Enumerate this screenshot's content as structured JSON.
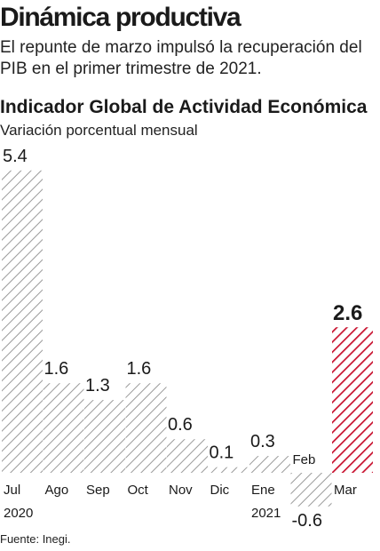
{
  "headline": "Dinámica productiva",
  "subtitle": "El repunte de marzo impulsó la recuperación del PIB en el primer trimestre de 2021.",
  "source": "Fuente: Inegi.",
  "colors": {
    "hatch_default": "#9a9a9a",
    "hatch_highlight": "#c8102e",
    "text": "#1a1a1a"
  },
  "chart_data": {
    "type": "bar",
    "title": "Indicador Global de Actividad Económica",
    "subtitle": "Variación porcentual mensual",
    "categories": [
      "Jul",
      "Ago",
      "Sep",
      "Oct",
      "Nov",
      "Dic",
      "Ene",
      "Feb",
      "Mar"
    ],
    "category_years": [
      "2020",
      "",
      "",
      "",
      "",
      "",
      "2021",
      "",
      ""
    ],
    "values": [
      5.4,
      1.6,
      1.3,
      1.6,
      0.6,
      0.1,
      0.3,
      -0.6,
      2.6
    ],
    "value_labels": [
      "5.4",
      "1.6",
      "1.3",
      "1.6",
      "0.6",
      "0.1",
      "0.3",
      "-0.6",
      "2.6"
    ],
    "highlight_index": 8,
    "fill": "diagonal hatch",
    "grid": false,
    "legend": "none"
  }
}
